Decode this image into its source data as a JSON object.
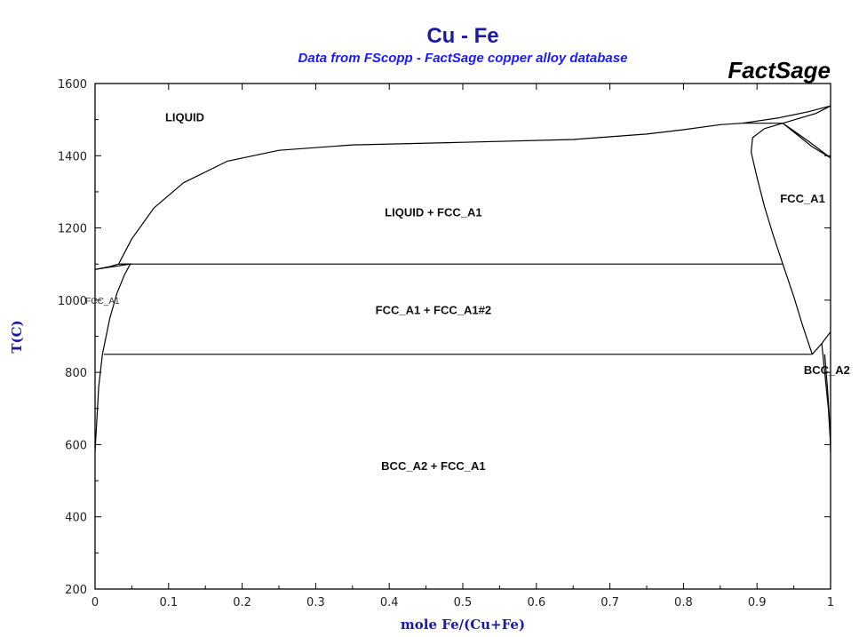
{
  "chart_data": {
    "type": "line",
    "title": "Cu - Fe",
    "subtitle": "Data from FScopp - FactSage copper alloy database",
    "brand": "FactSage",
    "xlabel": "mole Fe/(Cu+Fe)",
    "ylabel": "T(C)",
    "xlim": [
      0,
      1
    ],
    "ylim": [
      200,
      1600
    ],
    "x_ticks": [
      0,
      0.1,
      0.2,
      0.3,
      0.4,
      0.5,
      0.6,
      0.7,
      0.8,
      0.9,
      1
    ],
    "y_ticks": [
      200,
      400,
      600,
      800,
      1000,
      1200,
      1400,
      1600
    ],
    "grid": false,
    "colors": {
      "title": "#1a1aa6",
      "subtitle": "#1a1aff",
      "lines": "#000000",
      "axis_label": "#1a1aa6"
    },
    "regions": [
      {
        "label": "LIQUID",
        "x": 0.122,
        "y": 1495
      },
      {
        "label": "LIQUID + FCC_A1",
        "x": 0.46,
        "y": 1232
      },
      {
        "label": "FCC_A1",
        "x": 0.962,
        "y": 1270
      },
      {
        "label": "FCC_A1 + FCC_A1#2",
        "x": 0.46,
        "y": 962
      },
      {
        "label": "BCC_A2",
        "x": 0.995,
        "y": 795
      },
      {
        "label": "BCC_A2 + FCC_A1",
        "x": 0.46,
        "y": 530
      }
    ],
    "small_labels": [
      {
        "label": "FCC_A1",
        "x": -0.013,
        "y": 990
      }
    ],
    "series": [
      {
        "values": [
          [
            0,
            1085
          ],
          [
            0.02,
            1093
          ],
          [
            0.032,
            1100
          ],
          [
            0.05,
            1170
          ],
          [
            0.08,
            1255
          ],
          [
            0.12,
            1325
          ],
          [
            0.18,
            1385
          ],
          [
            0.25,
            1415
          ],
          [
            0.35,
            1430
          ],
          [
            0.5,
            1437
          ],
          [
            0.65,
            1445
          ],
          [
            0.75,
            1460
          ],
          [
            0.8,
            1472
          ],
          [
            0.85,
            1486
          ],
          [
            0.88,
            1490
          ],
          [
            0.93,
            1505
          ],
          [
            0.97,
            1522
          ],
          [
            1,
            1538
          ]
        ]
      },
      {
        "values": [
          [
            0.935,
            1100
          ],
          [
            0.922,
            1180
          ],
          [
            0.91,
            1260
          ],
          [
            0.9,
            1340
          ],
          [
            0.892,
            1410
          ],
          [
            0.894,
            1450
          ],
          [
            0.91,
            1475
          ],
          [
            0.935,
            1490
          ]
        ]
      },
      {
        "values": [
          [
            0.88,
            1490
          ],
          [
            0.935,
            1490
          ],
          [
            0.98,
            1517
          ],
          [
            1,
            1538
          ]
        ]
      },
      {
        "values": [
          [
            0.935,
            1490
          ],
          [
            0.97,
            1440
          ],
          [
            1,
            1394
          ]
        ]
      },
      {
        "values": [
          [
            0.935,
            1490
          ],
          [
            0.975,
            1425
          ],
          [
            1,
            1394
          ]
        ]
      },
      {
        "values": [
          [
            0.035,
            1100
          ],
          [
            0.935,
            1100
          ]
        ]
      },
      {
        "values": [
          [
            0.032,
            1100
          ],
          [
            0.05,
            1100
          ]
        ]
      },
      {
        "values": [
          [
            0.0,
            1085
          ],
          [
            0.048,
            1100
          ]
        ]
      },
      {
        "values": [
          [
            0.0,
            580
          ],
          [
            0.005,
            760
          ],
          [
            0.01,
            850
          ],
          [
            0.02,
            950
          ],
          [
            0.03,
            1020
          ],
          [
            0.04,
            1070
          ],
          [
            0.048,
            1100
          ]
        ]
      },
      {
        "values": [
          [
            0.012,
            850
          ],
          [
            0.975,
            850
          ]
        ]
      },
      {
        "values": [
          [
            0.935,
            1100
          ],
          [
            0.95,
            1010
          ],
          [
            0.962,
            930
          ],
          [
            0.975,
            850
          ]
        ]
      },
      {
        "values": [
          [
            0.975,
            850
          ],
          [
            0.988,
            880
          ],
          [
            1,
            912
          ]
        ]
      },
      {
        "values": [
          [
            0.988,
            880
          ],
          [
            0.992,
            800
          ],
          [
            0.997,
            700
          ],
          [
            1,
            600
          ]
        ]
      },
      {
        "values": [
          [
            0.992,
            850
          ],
          [
            0.996,
            750
          ],
          [
            0.999,
            650
          ],
          [
            1,
            580
          ]
        ]
      }
    ]
  }
}
